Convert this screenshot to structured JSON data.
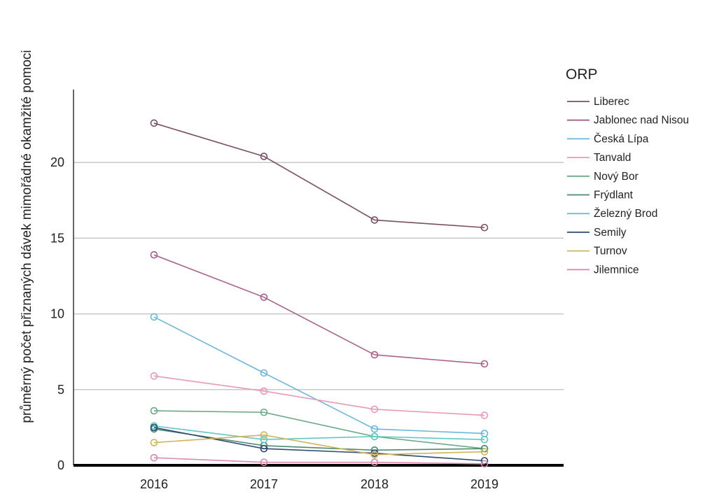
{
  "chart_data": {
    "type": "line",
    "ylabel": "průměrný počet přiznaných dávek mimořádné okamžité pomoci",
    "xlabel": "",
    "x": [
      "2016",
      "2017",
      "2018",
      "2019"
    ],
    "ylim": [
      0,
      25
    ],
    "yticks": [
      "0",
      "5",
      "10",
      "15",
      "20"
    ],
    "grid": "horizontal",
    "legend": {
      "title": "ORP",
      "position": "right"
    },
    "series": [
      {
        "name": "Liberec",
        "color": "#7a4f63",
        "values": [
          22.6,
          20.4,
          16.2,
          15.7
        ]
      },
      {
        "name": "Jablonec nad Nisou",
        "color": "#a85f8a",
        "values": [
          13.9,
          11.1,
          7.3,
          6.7
        ]
      },
      {
        "name": "Česká Lípa",
        "color": "#6ab7d9",
        "values": [
          9.8,
          6.1,
          2.4,
          2.1
        ]
      },
      {
        "name": "Tanvald",
        "color": "#e69ab8",
        "values": [
          5.9,
          4.9,
          3.7,
          3.3
        ]
      },
      {
        "name": "Nový Bor",
        "color": "#6aa886",
        "values": [
          3.6,
          3.5,
          1.9,
          1.1
        ]
      },
      {
        "name": "Frýdlant",
        "color": "#4e8a6e",
        "values": [
          2.4,
          1.3,
          1.0,
          1.1
        ]
      },
      {
        "name": "Železný Brod",
        "color": "#5fc8c4",
        "values": [
          2.6,
          1.7,
          1.9,
          1.7
        ]
      },
      {
        "name": "Semily",
        "color": "#2c4a72",
        "values": [
          2.5,
          1.1,
          0.8,
          0.3
        ]
      },
      {
        "name": "Turnov",
        "color": "#d1b35c",
        "values": [
          1.5,
          2.0,
          0.7,
          0.9
        ]
      },
      {
        "name": "Jilemnice",
        "color": "#d98ab0",
        "values": [
          0.5,
          0.2,
          0.2,
          0.1
        ]
      }
    ]
  }
}
